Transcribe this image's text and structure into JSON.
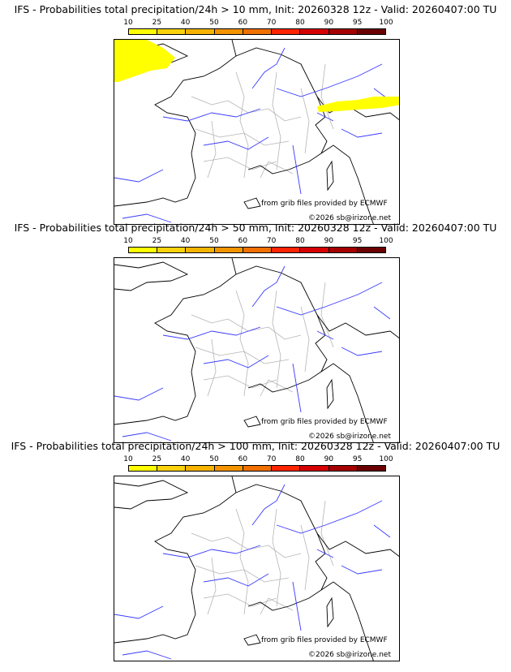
{
  "colorbar": {
    "tick_labels": [
      "10",
      "25",
      "40",
      "50",
      "60",
      "70",
      "80",
      "90",
      "95",
      "100"
    ],
    "colors": [
      "#ffff00",
      "#f9d20c",
      "#f5b300",
      "#f39300",
      "#f07000",
      "#ff2400",
      "#d60000",
      "#a50000",
      "#6b0000"
    ]
  },
  "panels": [
    {
      "title": "IFS - Probabilities total precipitation/24h > 10 mm, Init: 20260328 12z - Valid: 20260407:00 TU",
      "has_precip": true
    },
    {
      "title": "IFS - Probabilities total precipitation/24h > 50 mm, Init: 20260328 12z - Valid: 20260407:00 TU",
      "has_precip": false
    },
    {
      "title": "IFS - Probabilities total precipitation/24h > 100 mm, Init: 20260328 12z - Valid: 20260407:00 TU",
      "has_precip": false
    }
  ],
  "credits": {
    "source": "from grib files provided by ECMWF",
    "copyright": "©2026 sb@irizone.net"
  },
  "map_colors": {
    "coast": "#000000",
    "rivers": "#3a3aff",
    "borders": "#b4b4b4",
    "precip": "#ffff00"
  }
}
